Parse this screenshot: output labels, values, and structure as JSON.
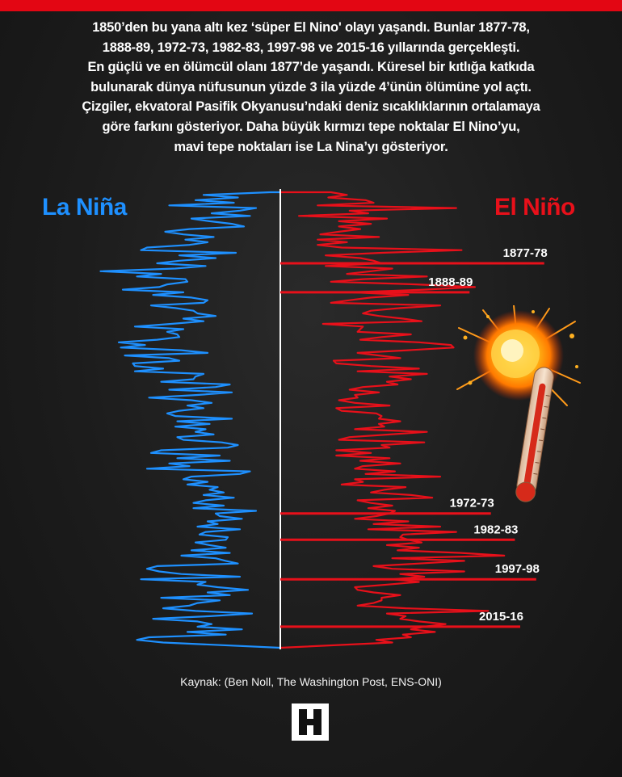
{
  "intro_lines": [
    "1850’den bu yana altı kez ‘süper El Nino' olayı yaşandı. Bunlar 1877-78,",
    "1888-89, 1972-73, 1982-83, 1997-98 ve 2015-16 yıllarında gerçekleşti.",
    "En güçlü ve en ölümcül olanı 1877’de yaşandı. Küresel bir kıtlığa katkıda",
    "bulunarak dünya nüfusunun yüzde 3 ila yüzde 4’ünün ölümüne yol açtı.",
    "Çizgiler, ekvatoral Pasifik Okyanusu’ndaki deniz sıcaklıklarının ortalamaya",
    "göre farkını gösteriyor. Daha büyük kırmızı tepe noktalar El Nino’yu,",
    "mavi tepe noktaları ise La Nina’yı gösteriyor."
  ],
  "labels": {
    "la_nina": "La Niña",
    "el_nino": "El Niño"
  },
  "colors": {
    "la_nina": "#1e90ff",
    "el_nino": "#e8101a",
    "accent_bar": "#e30613",
    "background": "#1c1c1c"
  },
  "chart_data": {
    "type": "bar",
    "orientation": "diverging-horizontal",
    "x_start": 1850,
    "x_end": 2023,
    "series": [
      {
        "name": "La Niña",
        "color": "#1e90ff",
        "values": [
          0.05,
          0.38,
          0.21,
          0.42,
          0.23,
          0.55,
          0.12,
          0.2,
          0.34,
          0.15,
          0.44,
          0.35,
          0.24,
          0.18,
          0.45,
          0.57,
          0.48,
          0.33,
          0.47,
          0.36,
          0.45,
          0.66,
          0.69,
          0.22,
          0.5,
          0.32,
          0.5,
          0.61,
          0.37,
          0.52,
          0.89,
          0.59,
          0.71,
          0.47,
          0.46,
          0.56,
          0.6,
          0.78,
          0.48,
          0.63,
          0.44,
          0.36,
          0.38,
          0.64,
          0.52,
          0.43,
          0.41,
          0.32,
          0.48,
          0.38,
          0.54,
          0.72,
          0.48,
          0.56,
          0.51,
          0.5,
          0.61,
          0.8,
          0.67,
          0.79,
          0.49,
          0.36,
          0.77,
          0.55,
          0.5,
          0.73,
          0.72,
          0.58,
          0.72,
          0.38,
          0.42,
          0.43,
          0.59,
          0.25,
          0.32,
          0.55,
          0.24,
          0.41,
          0.65,
          0.44,
          0.34,
          0.46,
          0.38,
          0.5,
          0.56,
          0.52,
          0.24,
          0.51,
          0.35,
          0.52,
          0.37,
          0.42,
          0.33,
          0.51,
          0.48,
          0.29,
          0.21,
          0.26,
          0.59,
          0.64,
          0.3,
          0.51,
          0.25,
          0.55,
          0.45,
          0.66,
          0.15,
          0.2,
          0.44,
          0.48,
          0.36,
          0.46,
          0.31,
          0.35,
          0.28,
          0.38,
          0.23,
          0.37,
          0.43,
          0.28,
          0.43,
          0.12,
          0.32,
          0.3,
          0.19,
          0.36,
          0.31,
          0.41,
          0.2,
          0.37,
          0.4,
          0.26,
          0.27,
          0.42,
          0.35,
          0.27,
          0.44,
          0.25,
          0.49,
          0.32,
          0.27,
          0.21,
          0.61,
          0.66,
          0.6,
          0.49,
          0.2,
          0.69,
          0.37,
          0.41,
          0.31,
          0.16,
          0.36,
          0.25,
          0.59,
          0.3,
          0.41,
          0.45,
          0.58,
          0.42,
          0.14,
          0.35,
          0.63,
          0.41,
          0.34,
          0.41,
          0.19,
          0.46,
          0.27,
          0.65,
          0.71,
          0.58
        ]
      },
      {
        "name": "El Niño",
        "color": "#e8101a",
        "values": [
          0.19,
          0.25,
          0.18,
          0.32,
          0.35,
          0.14,
          0.66,
          0.26,
          0.33,
          0.07,
          0.4,
          0.22,
          0.34,
          0.22,
          0.3,
          0.22,
          0.15,
          0.37,
          0.14,
          0.25,
          0.14,
          0.23,
          0.68,
          0.38,
          0.17,
          0.3,
          0.35,
          0.38,
          0.17,
          0.42,
          0.34,
          0.25,
          0.55,
          0.31,
          0.19,
          0.51,
          0.73,
          0.54,
          0.27,
          0.48,
          0.34,
          0.26,
          0.19,
          0.6,
          0.45,
          0.34,
          0.31,
          0.37,
          0.46,
          0.53,
          0.16,
          0.31,
          0.3,
          0.29,
          0.49,
          0.38,
          0.3,
          0.52,
          0.64,
          0.65,
          0.48,
          0.29,
          0.37,
          0.45,
          0.2,
          0.21,
          0.34,
          0.52,
          0.29,
          0.55,
          0.41,
          0.49,
          0.4,
          0.44,
          0.31,
          0.26,
          0.37,
          0.28,
          0.29,
          0.22,
          0.28,
          0.41,
          0.21,
          0.23,
          0.36,
          0.38,
          0.37,
          0.45,
          0.37,
          0.39,
          0.28,
          0.55,
          0.41,
          0.26,
          0.22,
          0.54,
          0.38,
          0.41,
          0.21,
          0.34,
          0.21,
          0.41,
          0.3,
          0.45,
          0.31,
          0.28,
          0.43,
          0.32,
          0.6,
          0.28,
          0.31,
          0.23,
          0.47,
          0.39,
          0.34,
          0.49,
          0.57,
          0.29,
          0.34,
          0.42,
          0.33,
          0.43,
          0.41,
          0.36,
          0.28,
          0.48,
          0.35,
          0.6,
          0.33,
          0.66,
          0.46,
          0.45,
          0.48,
          0.53,
          0.4,
          0.52,
          0.44,
          0.68,
          0.84,
          0.42,
          0.69,
          0.52,
          0.35,
          0.42,
          0.69,
          0.45,
          0.54,
          0.42,
          0.52,
          0.4,
          0.28,
          0.29,
          0.35,
          0.45,
          0.38,
          0.38,
          0.35,
          0.29,
          0.47,
          0.78,
          0.4,
          0.47,
          0.45,
          0.52,
          0.62,
          0.54,
          0.49,
          0.58,
          0.46,
          0.49,
          0.36,
          0.42
        ]
      }
    ],
    "annotations": [
      {
        "label": "1877-78",
        "year": 1877,
        "value": 0.99
      },
      {
        "label": "1888-89",
        "year": 1888,
        "value": 0.71
      },
      {
        "label": "1972-73",
        "year": 1972,
        "value": 0.79
      },
      {
        "label": "1982-83",
        "year": 1982,
        "value": 0.88
      },
      {
        "label": "1997-98",
        "year": 1997,
        "value": 0.96
      },
      {
        "label": "2015-16",
        "year": 2015,
        "value": 0.9
      }
    ]
  },
  "source": "Kaynak: (Ben Noll, The Washington Post, ENS-ONI)",
  "logo_icon": "h-logo-icon"
}
